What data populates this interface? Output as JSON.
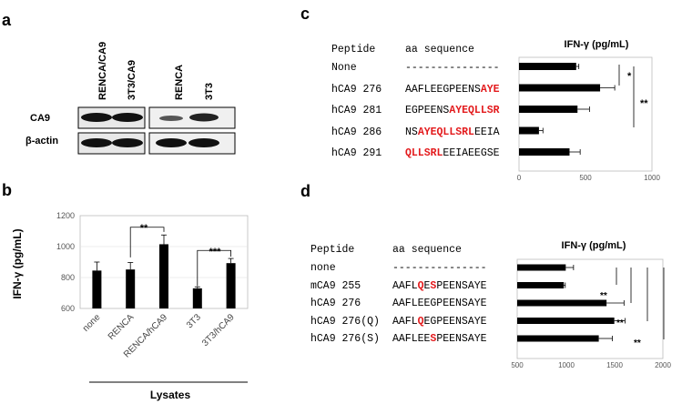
{
  "panels": {
    "a": "a",
    "b": "b",
    "c": "c",
    "d": "d"
  },
  "blot": {
    "lanes": [
      "RENCA/CA9",
      "3T3/CA9",
      "RENCA",
      "3T3"
    ],
    "rows": [
      "CA9",
      "β-actin"
    ]
  },
  "panel_b": {
    "ylabel": "IFN-γ (pg/mL)",
    "yticks": [
      "1200",
      "1000",
      "800",
      "600"
    ],
    "sig_left": "**",
    "sig_right": "***",
    "group_label": "Lysates"
  },
  "panel_c": {
    "col_peptide": "Peptide",
    "col_seq": "aa sequence",
    "axis_title": "IFN-γ (pg/mL)",
    "xticks": [
      "0",
      "500",
      "1000"
    ],
    "sig1": "*",
    "sig2": "**",
    "rows": [
      {
        "name": "None",
        "seq": [
          {
            "t": "---------------",
            "r": false
          }
        ]
      },
      {
        "name": "hCA9 276",
        "seq": [
          {
            "t": "AAFLEEGPEENS",
            "r": false
          },
          {
            "t": "AYE",
            "r": true
          }
        ]
      },
      {
        "name": "hCA9 281",
        "seq": [
          {
            "t": "EGPEENS",
            "r": false
          },
          {
            "t": "AYEQLLSR",
            "r": true
          }
        ]
      },
      {
        "name": "hCA9 286",
        "seq": [
          {
            "t": "NS",
            "r": false
          },
          {
            "t": "AYEQLLSRL",
            "r": true
          },
          {
            "t": "EEIA",
            "r": false
          }
        ]
      },
      {
        "name": "hCA9 291",
        "seq": [
          {
            "t": "QLLSRL",
            "r": true
          },
          {
            "t": "EEIAEEGSE",
            "r": false
          }
        ]
      }
    ]
  },
  "panel_d": {
    "col_peptide": "Peptide",
    "col_seq": "aa sequence",
    "axis_title": "IFN-γ (pg/mL)",
    "xticks": [
      "500",
      "1000",
      "1500",
      "2000"
    ],
    "sig1": "**",
    "sig2": "**",
    "sig3": "**",
    "rows": [
      {
        "name": "none",
        "seq": [
          {
            "t": "---------------",
            "r": false
          }
        ]
      },
      {
        "name": "mCA9 255",
        "seq": [
          {
            "t": "AAFL",
            "r": false
          },
          {
            "t": "Q",
            "r": true
          },
          {
            "t": "E",
            "r": false
          },
          {
            "t": "S",
            "r": true
          },
          {
            "t": "PEENSAYE",
            "r": false
          }
        ]
      },
      {
        "name": "hCA9 276",
        "seq": [
          {
            "t": "AAFLEEGPEENSAYE",
            "r": false
          }
        ]
      },
      {
        "name": "hCA9 276(Q)",
        "seq": [
          {
            "t": "AAFL",
            "r": false
          },
          {
            "t": "Q",
            "r": true
          },
          {
            "t": "EGPEENSAYE",
            "r": false
          }
        ]
      },
      {
        "name": "hCA9 276(S)",
        "seq": [
          {
            "t": "AAFLEE",
            "r": false
          },
          {
            "t": "S",
            "r": true
          },
          {
            "t": "PEENSAYE",
            "r": false
          }
        ]
      }
    ]
  },
  "chart_data": [
    {
      "type": "bar",
      "panel": "b",
      "categories": [
        "none",
        "RENCA",
        "RENCA/hCA9",
        "3T3",
        "3T3/hCA9"
      ],
      "values": [
        845,
        852,
        1015,
        730,
        893
      ],
      "errors": [
        55,
        45,
        60,
        10,
        30
      ],
      "ylabel": "IFN-γ (pg/mL)",
      "ylim": [
        600,
        1200
      ]
    },
    {
      "type": "bar",
      "orientation": "horizontal",
      "panel": "c",
      "categories": [
        "None",
        "hCA9 276",
        "hCA9 281",
        "hCA9 286",
        "hCA9 291"
      ],
      "values": [
        430,
        610,
        440,
        150,
        380
      ],
      "errors": [
        20,
        110,
        90,
        30,
        80
      ],
      "xlabel": "IFN-γ (pg/mL)",
      "xlim": [
        0,
        1000
      ]
    },
    {
      "type": "bar",
      "orientation": "horizontal",
      "panel": "d",
      "categories": [
        "none",
        "mCA9 255",
        "hCA9 276",
        "hCA9 276(Q)",
        "hCA9 276(S)"
      ],
      "values": [
        1000,
        980,
        1420,
        1500,
        1340
      ],
      "errors": [
        80,
        15,
        180,
        110,
        140
      ],
      "xlabel": "IFN-γ (pg/mL)",
      "xlim": [
        500,
        2000
      ]
    }
  ]
}
